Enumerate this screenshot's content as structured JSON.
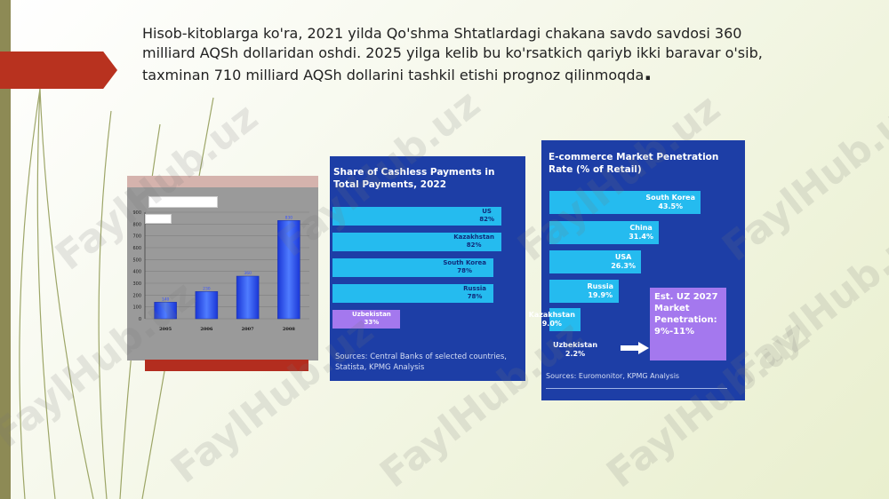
{
  "slide": {
    "intro_text": "Hisob-kitoblarga ko'ra, 2021 yilda Qo'shma Shtatlardagi chakana savdo savdosi 360 milliard AQSh dollaridan oshdi. 2025 yilga kelib bu ko'rsatkich qariyb ikki baravar o'sib, taxminan 710 milliard AQSh dollarini tashkil etishi prognoz qilinmoqda",
    "intro_end": ".",
    "watermark": "FaylHub.uz",
    "colors": {
      "accent_red": "#b8321f",
      "side_bar": "#8d8a55",
      "panel_blue": "#1d3ea6",
      "bar_cyan": "#25bbef",
      "highlight_purple": "#a478ee"
    }
  },
  "chart_data": [
    {
      "type": "bar",
      "categories": [
        "2005",
        "2006",
        "2007",
        "2008"
      ],
      "values": [
        140,
        230,
        360,
        830
      ],
      "ylim": [
        0,
        900
      ],
      "yticks": [
        "0",
        "100",
        "200",
        "300",
        "400",
        "500",
        "600",
        "700",
        "800",
        "900"
      ],
      "legend_text": "",
      "grid": true
    },
    {
      "type": "bar",
      "orientation": "horizontal",
      "title": "Share of Cashless Payments in Total Payments, 2022",
      "categories": [
        "US",
        "Kazakhstan",
        "South Korea",
        "Russia",
        "Uzbekistan"
      ],
      "values": [
        82,
        82,
        78,
        78,
        33
      ],
      "value_labels": [
        "82%",
        "82%",
        "78%",
        "78%",
        "33%"
      ],
      "highlight": "Uzbekistan",
      "source": "Sources: Central Banks of selected countries, Statista, KPMG Analysis"
    },
    {
      "type": "bar",
      "orientation": "horizontal",
      "title": "E-commerce Market Penetration Rate (% of Retail)",
      "categories": [
        "South Korea",
        "China",
        "USA",
        "Russia",
        "Kazakhstan",
        "Uzbekistan"
      ],
      "values": [
        43.5,
        31.4,
        26.3,
        19.9,
        9.0,
        2.2
      ],
      "value_labels": [
        "43.5%",
        "31.4%",
        "26.3%",
        "19.9%",
        "9.0%",
        "2.2%"
      ],
      "highlight": "Uzbekistan",
      "estimate_note": "Est. UZ 2027 Market Penetration: 9%-11%",
      "source": "Sources: Euromonitor, KPMG Analysis"
    }
  ]
}
